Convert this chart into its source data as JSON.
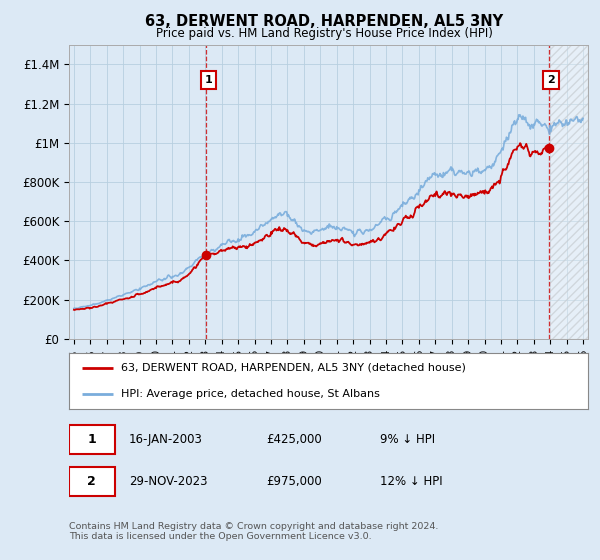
{
  "title": "63, DERWENT ROAD, HARPENDEN, AL5 3NY",
  "subtitle": "Price paid vs. HM Land Registry's House Price Index (HPI)",
  "ylim": [
    0,
    1500000
  ],
  "yticks": [
    0,
    200000,
    400000,
    600000,
    800000,
    1000000,
    1200000,
    1400000
  ],
  "ytick_labels": [
    "£0",
    "£200K",
    "£400K",
    "£600K",
    "£800K",
    "£1M",
    "£1.2M",
    "£1.4M"
  ],
  "xlim_start": 1994.7,
  "xlim_end": 2026.3,
  "xticks": [
    1995,
    1996,
    1997,
    1998,
    1999,
    2000,
    2001,
    2002,
    2003,
    2004,
    2005,
    2006,
    2007,
    2008,
    2009,
    2010,
    2011,
    2012,
    2013,
    2014,
    2015,
    2016,
    2017,
    2018,
    2019,
    2020,
    2021,
    2022,
    2023,
    2024,
    2025,
    2026
  ],
  "sale1_x": 2003.04,
  "sale1_y": 425000,
  "sale1_label": "1",
  "sale2_x": 2023.91,
  "sale2_y": 975000,
  "sale2_label": "2",
  "vline1_x": 2003.04,
  "vline2_x": 2023.91,
  "hatch_start": 2023.91,
  "hatch_end": 2026.3,
  "red_line_color": "#cc0000",
  "blue_line_color": "#7aaddc",
  "background_color": "#dce9f5",
  "plot_bg_color": "#dce9f5",
  "grid_color": "#b8cfe0",
  "legend_entry1": "63, DERWENT ROAD, HARPENDEN, AL5 3NY (detached house)",
  "legend_entry2": "HPI: Average price, detached house, St Albans",
  "note1_label": "1",
  "note1_date": "16-JAN-2003",
  "note1_price": "£425,000",
  "note1_hpi": "9% ↓ HPI",
  "note2_label": "2",
  "note2_date": "29-NOV-2023",
  "note2_price": "£975,000",
  "note2_hpi": "12% ↓ HPI",
  "footer": "Contains HM Land Registry data © Crown copyright and database right 2024.\nThis data is licensed under the Open Government Licence v3.0."
}
